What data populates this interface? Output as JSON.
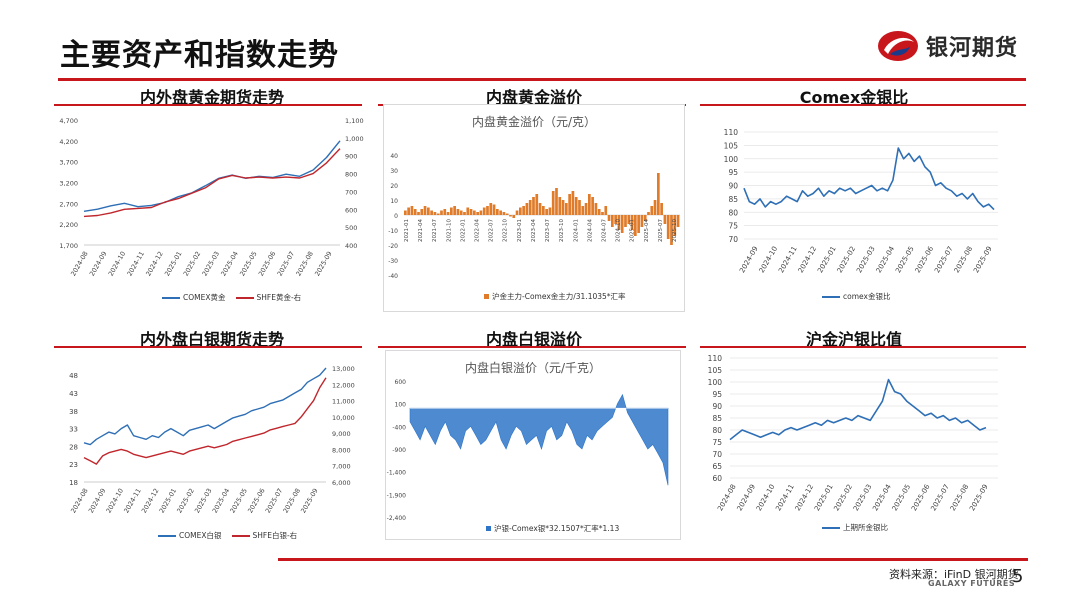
{
  "page": {
    "title": "主要资产和指数走势",
    "logo_text": "银河期货",
    "source_note": "资料来源：iFinD 银河期货",
    "brand_en": "GALAXY FUTURES",
    "page_number": "5",
    "accent_color": "#c8161d"
  },
  "panels": {
    "p1": {
      "title": "内外盘黄金期货走势"
    },
    "p2": {
      "title": "内盘黄金溢价"
    },
    "p3": {
      "title": "Comex金银比"
    },
    "p4": {
      "title": "内外盘白银期货走势"
    },
    "p5": {
      "title": "内盘白银溢价"
    },
    "p6": {
      "title": "沪金沪银比值"
    }
  },
  "chart_data": [
    {
      "id": "p1",
      "type": "line",
      "x_ticks": [
        "2024-08",
        "2024-09",
        "2024-10",
        "2024-11",
        "2024-12",
        "2025-01",
        "2025-02",
        "2025-03",
        "2025-04",
        "2025-05",
        "2025-06",
        "2025-07",
        "2025-08",
        "2025-09"
      ],
      "y_left_ticks": [
        "1,700",
        "2,200",
        "2,700",
        "3,200",
        "3,700",
        "4,200",
        "4,700"
      ],
      "y_right_ticks": [
        "400",
        "500",
        "600",
        "700",
        "800",
        "900",
        "1,000",
        "1,100"
      ],
      "ylim_left": [
        1700,
        4700
      ],
      "ylim_right": [
        400,
        1100
      ],
      "series": [
        {
          "name": "COMEX黄金",
          "axis": "left",
          "color": "#2e6fb5",
          "values": [
            2510,
            2560,
            2640,
            2700,
            2620,
            2650,
            2720,
            2860,
            2950,
            3120,
            3300,
            3380,
            3300,
            3350,
            3320,
            3400,
            3350,
            3500,
            3800,
            4200
          ]
        },
        {
          "name": "SHFE黄金-右",
          "axis": "right",
          "color": "#c0272d",
          "values": [
            560,
            565,
            580,
            600,
            605,
            610,
            640,
            660,
            690,
            720,
            770,
            790,
            775,
            780,
            775,
            780,
            775,
            800,
            860,
            940
          ]
        }
      ]
    },
    {
      "id": "p2",
      "type": "bar",
      "inner_title": "内盘黄金溢价（元/克）",
      "y_ticks": [
        "40",
        "30",
        "20",
        "10",
        "0",
        "-10",
        "-20",
        "-30",
        "-40"
      ],
      "ylim": [
        -40,
        40
      ],
      "x_ticks": [
        "2021-01",
        "2021-04",
        "2021-07",
        "2021-10",
        "2022-01",
        "2022-04",
        "2022-07",
        "2022-10",
        "2023-01",
        "2023-04",
        "2023-07",
        "2023-10",
        "2024-01",
        "2024-04",
        "2024-07",
        "2024-10",
        "2025-01",
        "2025-04",
        "2025-07",
        "2025-10"
      ],
      "series": [
        {
          "name": "沪金主力-Comex金主力/31.1035*汇率",
          "color": "#e07b2a",
          "values": [
            3,
            5,
            6,
            4,
            2,
            4,
            6,
            5,
            3,
            2,
            1,
            3,
            4,
            2,
            5,
            6,
            4,
            3,
            2,
            5,
            4,
            3,
            2,
            3,
            5,
            6,
            8,
            7,
            4,
            3,
            2,
            1,
            -1,
            -2,
            3,
            5,
            6,
            8,
            10,
            12,
            14,
            8,
            6,
            4,
            5,
            16,
            18,
            12,
            10,
            8,
            14,
            16,
            12,
            10,
            6,
            8,
            14,
            12,
            8,
            4,
            2,
            6,
            -4,
            -8,
            -6,
            -10,
            -12,
            -8,
            -6,
            -10,
            -14,
            -12,
            -8,
            -4,
            2,
            6,
            10,
            28,
            8,
            -6,
            -16,
            -20,
            -14,
            -8
          ]
        }
      ]
    },
    {
      "id": "p3",
      "type": "line",
      "x_ticks": [
        "2024-09",
        "2024-10",
        "2024-11",
        "2024-12",
        "2025-01",
        "2025-02",
        "2025-03",
        "2025-04",
        "2025-05",
        "2025-06",
        "2025-07",
        "2025-08",
        "2025-09"
      ],
      "y_ticks": [
        "70",
        "75",
        "80",
        "85",
        "90",
        "95",
        "100",
        "105",
        "110"
      ],
      "ylim": [
        70,
        110
      ],
      "series": [
        {
          "name": "comex金银比",
          "color": "#2e6fb5",
          "values": [
            89,
            84,
            83,
            85,
            82,
            84,
            83,
            84,
            86,
            85,
            84,
            88,
            86,
            87,
            89,
            86,
            88,
            87,
            89,
            88,
            89,
            87,
            88,
            89,
            90,
            88,
            89,
            88,
            92,
            104,
            100,
            102,
            99,
            101,
            97,
            95,
            90,
            91,
            89,
            88,
            86,
            87,
            85,
            87,
            84,
            82,
            83,
            81
          ]
        }
      ]
    },
    {
      "id": "p4",
      "type": "line",
      "x_ticks": [
        "2024-08",
        "2024-09",
        "2024-10",
        "2024-11",
        "2024-12",
        "2025-01",
        "2025-02",
        "2025-03",
        "2025-04",
        "2025-05",
        "2025-06",
        "2025-07",
        "2025-08",
        "2025-09"
      ],
      "y_left_ticks": [
        "18",
        "23",
        "28",
        "33",
        "38",
        "43",
        "48"
      ],
      "y_right_ticks": [
        "6,000",
        "7,000",
        "8,000",
        "9,000",
        "10,000",
        "11,000",
        "12,000",
        "13,000"
      ],
      "ylim_left": [
        18,
        50
      ],
      "ylim_right": [
        6000,
        13000
      ],
      "series": [
        {
          "name": "COMEX白银",
          "axis": "left",
          "color": "#2e6fb5",
          "values": [
            29,
            28.5,
            30,
            31,
            32,
            31.5,
            33,
            34,
            31,
            30.5,
            30,
            31,
            30.5,
            32,
            33,
            32,
            31,
            32.5,
            33,
            33.5,
            34,
            33,
            34,
            35,
            36,
            36.5,
            37,
            38,
            38.5,
            39,
            40,
            40.5,
            41,
            42,
            43,
            44,
            46,
            47,
            48,
            50
          ]
        },
        {
          "name": "SHFE白银-右",
          "axis": "right",
          "color": "#c0272d",
          "values": [
            7500,
            7300,
            7100,
            7600,
            7800,
            7900,
            8000,
            7900,
            7700,
            7600,
            7500,
            7600,
            7700,
            7800,
            7900,
            7800,
            7700,
            7900,
            8000,
            8100,
            8200,
            8100,
            8200,
            8300,
            8500,
            8600,
            8700,
            8800,
            8900,
            9000,
            9200,
            9300,
            9400,
            9500,
            9600,
            10000,
            10500,
            11000,
            11800,
            12400
          ]
        }
      ]
    },
    {
      "id": "p5",
      "type": "area",
      "inner_title": "内盘白银溢价（元/千克）",
      "y_ticks": [
        "600",
        "100",
        "-400",
        "-900",
        "-1,400",
        "-1,900",
        "-2,400"
      ],
      "ylim": [
        -2400,
        600
      ],
      "series": [
        {
          "name": "沪银-Comex银*32.1507*汇率*1.13",
          "color": "#2e75c8",
          "values": [
            -300,
            -500,
            -700,
            -400,
            -600,
            -800,
            -500,
            -300,
            -600,
            -700,
            -900,
            -500,
            -400,
            -600,
            -800,
            -700,
            -500,
            -300,
            -700,
            -900,
            -600,
            -400,
            -500,
            -800,
            -700,
            -600,
            -900,
            -500,
            -400,
            -700,
            -600,
            -300,
            -500,
            -800,
            -900,
            -600,
            -700,
            -500,
            -400,
            -300,
            -200,
            100,
            300,
            -100,
            -300,
            -500,
            -700,
            -900,
            -800,
            -1000,
            -1200,
            -1700
          ]
        }
      ]
    },
    {
      "id": "p6",
      "type": "line",
      "x_ticks": [
        "2024-08",
        "2024-09",
        "2024-10",
        "2024-11",
        "2024-12",
        "2025-01",
        "2025-02",
        "2025-03",
        "2025-04",
        "2025-05",
        "2025-06",
        "2025-07",
        "2025-08",
        "2025-09"
      ],
      "y_ticks": [
        "60",
        "65",
        "70",
        "75",
        "80",
        "85",
        "90",
        "95",
        "100",
        "105",
        "110"
      ],
      "ylim": [
        60,
        110
      ],
      "series": [
        {
          "name": "上期所金银比",
          "color": "#2e6fb5",
          "values": [
            76,
            78,
            80,
            79,
            78,
            77,
            78,
            79,
            78,
            80,
            81,
            80,
            81,
            82,
            83,
            82,
            84,
            83,
            84,
            85,
            84,
            86,
            85,
            84,
            88,
            92,
            101,
            96,
            95,
            92,
            90,
            88,
            86,
            87,
            85,
            86,
            84,
            85,
            83,
            84,
            82,
            80,
            81
          ]
        }
      ]
    }
  ]
}
